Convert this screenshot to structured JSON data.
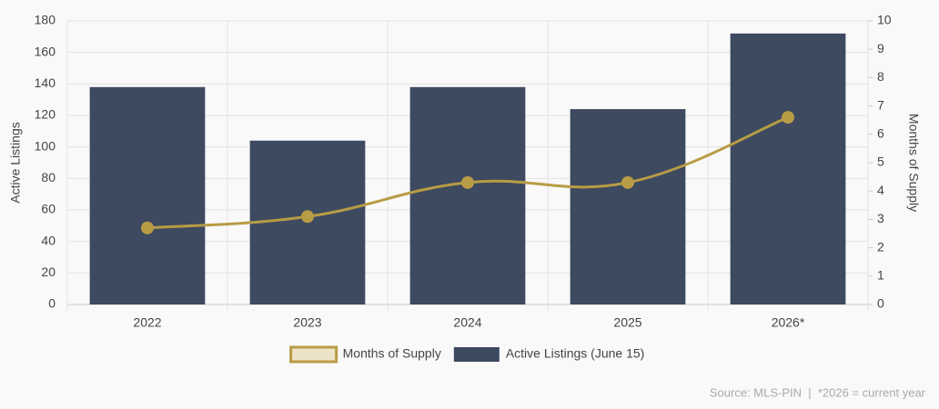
{
  "chart_data": {
    "type": "bar",
    "categories": [
      "2022",
      "2023",
      "2024",
      "2025",
      "2026*"
    ],
    "series": [
      {
        "name": "Months of Supply",
        "type": "line",
        "axis": "y2",
        "color": "#b89c45",
        "values": [
          2.7,
          3.1,
          4.3,
          4.3,
          6.6
        ]
      },
      {
        "name": "Active Listings (June 15)",
        "type": "bar",
        "color": "#3d4a60",
        "values": [
          138,
          104,
          138,
          124,
          172
        ]
      }
    ],
    "y_label": "Active Listings",
    "y2_label": "Months of Supply",
    "ylim": [
      0,
      180
    ],
    "yticks": [
      0,
      20,
      40,
      60,
      80,
      100,
      120,
      140,
      160,
      180
    ],
    "y2lim": [
      0,
      10
    ],
    "y2ticks": [
      0,
      1,
      2,
      3,
      4,
      5,
      6,
      7,
      8,
      9,
      10
    ],
    "grid": true,
    "legend": "bottom",
    "source": "Source: MLS-PIN  |  *2026 = current year"
  }
}
